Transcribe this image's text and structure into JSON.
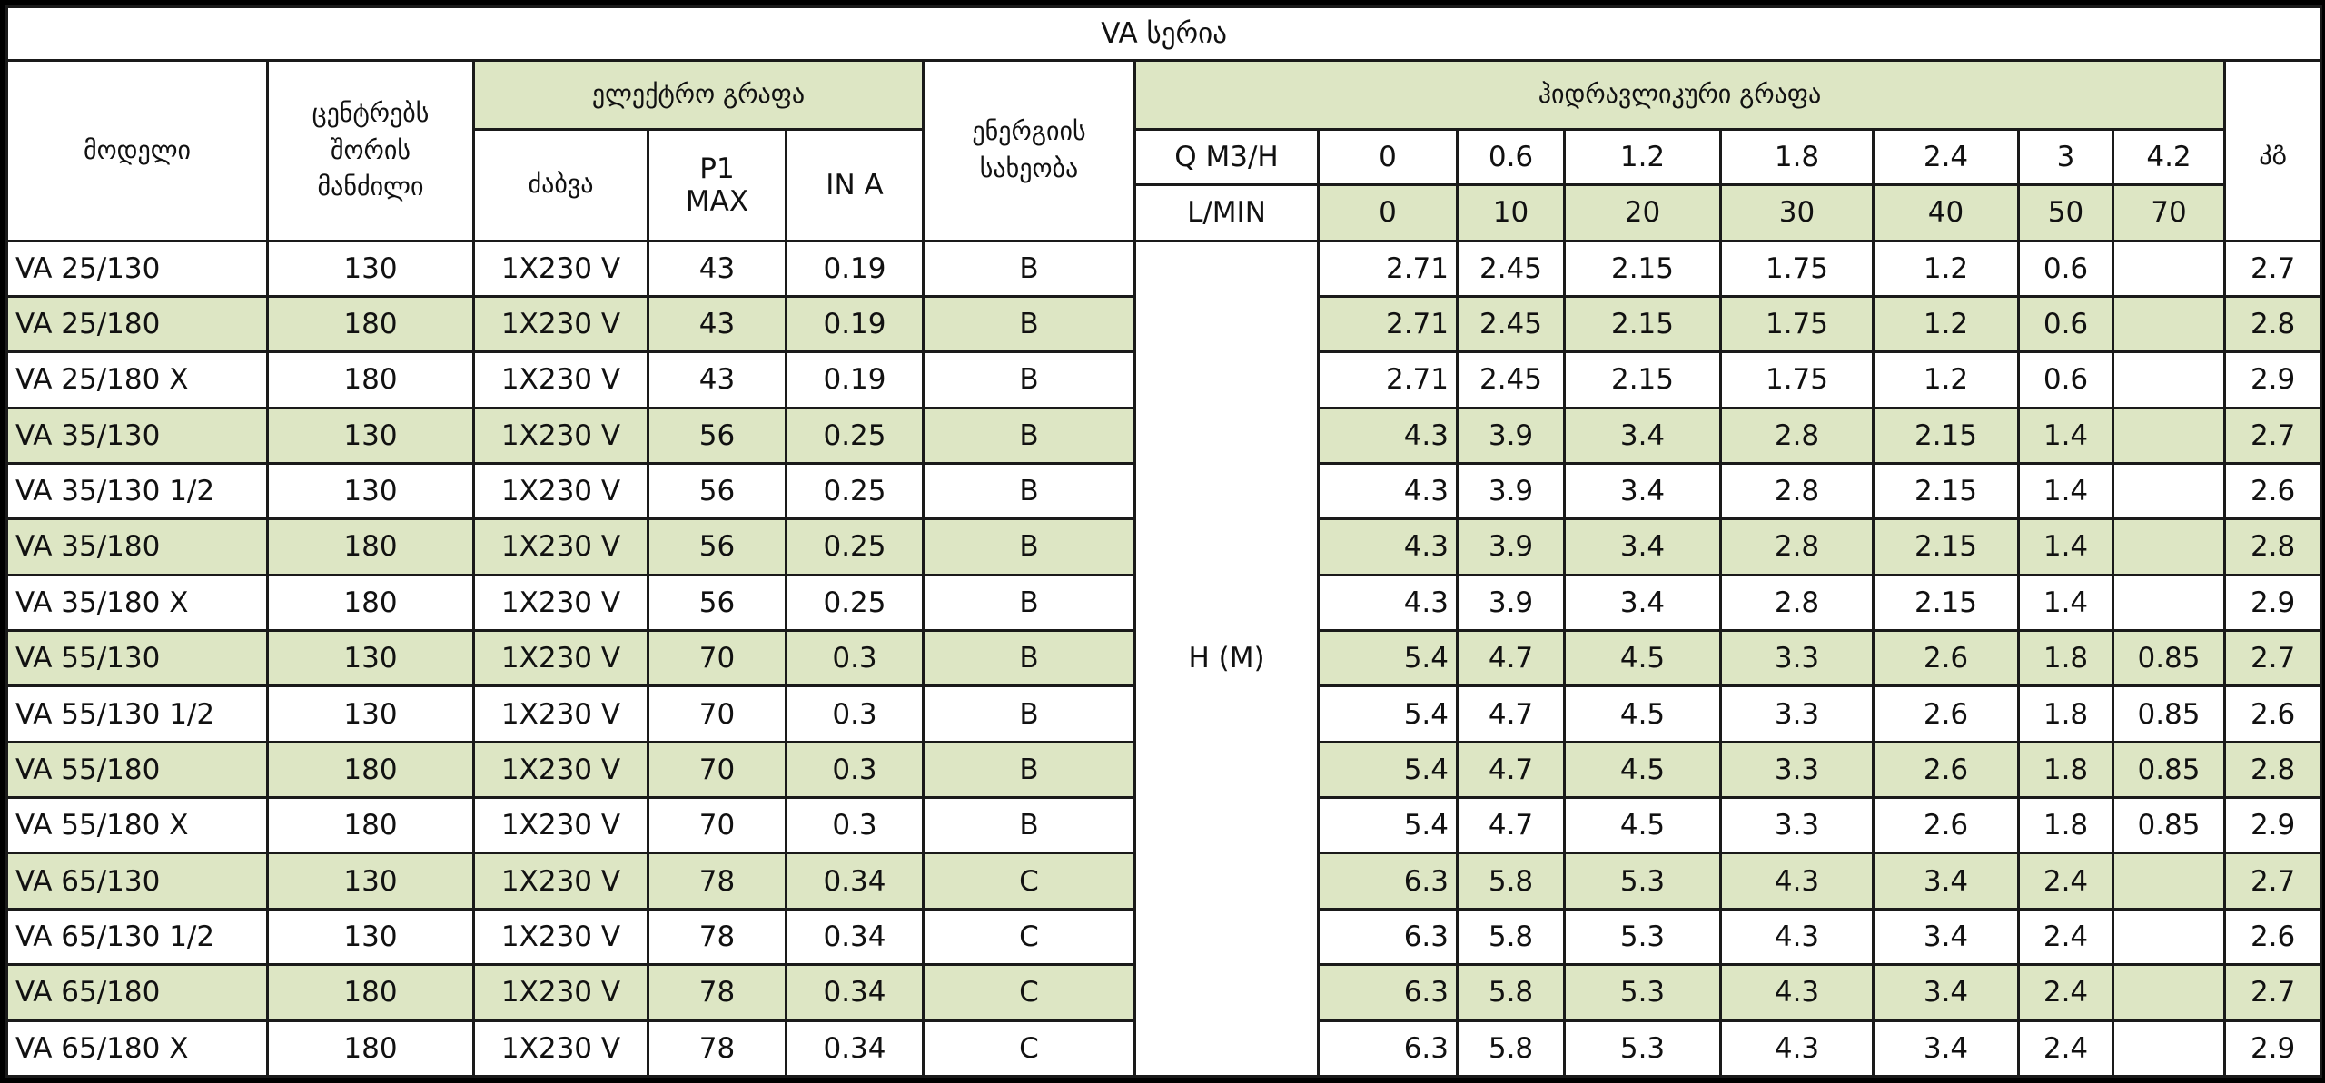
{
  "title": "VA სერია",
  "headers": {
    "model": "მოდელი",
    "distance": [
      "ცენტრებს",
      "შორის",
      "მანძილი"
    ],
    "electric_group": "ელექტრო გრაფა",
    "voltage": "ძაბვა",
    "p1": [
      "P1",
      "MAX"
    ],
    "in_a": "IN A",
    "energy": [
      "ენერგიის",
      "სახეობა"
    ],
    "hydraulic_group": "ჰიდრავლიკური გრაფა",
    "q_label": "Q M3/H",
    "q_values": [
      "0",
      "0.6",
      "1.2",
      "1.8",
      "2.4",
      "3",
      "4.2"
    ],
    "lmin_label": "L/MIN",
    "lmin_values": [
      "0",
      "10",
      "20",
      "30",
      "40",
      "50",
      "70"
    ],
    "kg": "კგ",
    "h_label": "H (M)"
  },
  "colors": {
    "row_highlight": "#dde6c4",
    "border": "#1a1a1a"
  },
  "rows": [
    {
      "model": "VA 25/130",
      "distance": "130",
      "voltage": "1X230 V",
      "p1": "43",
      "in_a": "0.19",
      "energy": "B",
      "h": [
        "2.71",
        "2.45",
        "2.15",
        "1.75",
        "1.2",
        "0.6",
        ""
      ],
      "kg": "2.7"
    },
    {
      "model": "VA 25/180",
      "distance": "180",
      "voltage": "1X230 V",
      "p1": "43",
      "in_a": "0.19",
      "energy": "B",
      "h": [
        "2.71",
        "2.45",
        "2.15",
        "1.75",
        "1.2",
        "0.6",
        ""
      ],
      "kg": "2.8"
    },
    {
      "model": "VA 25/180 X",
      "distance": "180",
      "voltage": "1X230 V",
      "p1": "43",
      "in_a": "0.19",
      "energy": "B",
      "h": [
        "2.71",
        "2.45",
        "2.15",
        "1.75",
        "1.2",
        "0.6",
        ""
      ],
      "kg": "2.9"
    },
    {
      "model": "VA 35/130",
      "distance": "130",
      "voltage": "1X230 V",
      "p1": "56",
      "in_a": "0.25",
      "energy": "B",
      "h": [
        "4.3",
        "3.9",
        "3.4",
        "2.8",
        "2.15",
        "1.4",
        ""
      ],
      "kg": "2.7"
    },
    {
      "model": "VA 35/130 1/2",
      "distance": "130",
      "voltage": "1X230 V",
      "p1": "56",
      "in_a": "0.25",
      "energy": "B",
      "h": [
        "4.3",
        "3.9",
        "3.4",
        "2.8",
        "2.15",
        "1.4",
        ""
      ],
      "kg": "2.6"
    },
    {
      "model": "VA 35/180",
      "distance": "180",
      "voltage": "1X230 V",
      "p1": "56",
      "in_a": "0.25",
      "energy": "B",
      "h": [
        "4.3",
        "3.9",
        "3.4",
        "2.8",
        "2.15",
        "1.4",
        ""
      ],
      "kg": "2.8"
    },
    {
      "model": "VA 35/180 X",
      "distance": "180",
      "voltage": "1X230 V",
      "p1": "56",
      "in_a": "0.25",
      "energy": "B",
      "h": [
        "4.3",
        "3.9",
        "3.4",
        "2.8",
        "2.15",
        "1.4",
        ""
      ],
      "kg": "2.9"
    },
    {
      "model": "VA 55/130",
      "distance": "130",
      "voltage": "1X230 V",
      "p1": "70",
      "in_a": "0.3",
      "energy": "B",
      "h": [
        "5.4",
        "4.7",
        "4.5",
        "3.3",
        "2.6",
        "1.8",
        "0.85"
      ],
      "kg": "2.7"
    },
    {
      "model": "VA 55/130 1/2",
      "distance": "130",
      "voltage": "1X230 V",
      "p1": "70",
      "in_a": "0.3",
      "energy": "B",
      "h": [
        "5.4",
        "4.7",
        "4.5",
        "3.3",
        "2.6",
        "1.8",
        "0.85"
      ],
      "kg": "2.6"
    },
    {
      "model": "VA 55/180",
      "distance": "180",
      "voltage": "1X230 V",
      "p1": "70",
      "in_a": "0.3",
      "energy": "B",
      "h": [
        "5.4",
        "4.7",
        "4.5",
        "3.3",
        "2.6",
        "1.8",
        "0.85"
      ],
      "kg": "2.8"
    },
    {
      "model": "VA 55/180 X",
      "distance": "180",
      "voltage": "1X230 V",
      "p1": "70",
      "in_a": "0.3",
      "energy": "B",
      "h": [
        "5.4",
        "4.7",
        "4.5",
        "3.3",
        "2.6",
        "1.8",
        "0.85"
      ],
      "kg": "2.9"
    },
    {
      "model": "VA 65/130",
      "distance": "130",
      "voltage": "1X230 V",
      "p1": "78",
      "in_a": "0.34",
      "energy": "C",
      "h": [
        "6.3",
        "5.8",
        "5.3",
        "4.3",
        "3.4",
        "2.4",
        ""
      ],
      "kg": "2.7"
    },
    {
      "model": "VA 65/130 1/2",
      "distance": "130",
      "voltage": "1X230 V",
      "p1": "78",
      "in_a": "0.34",
      "energy": "C",
      "h": [
        "6.3",
        "5.8",
        "5.3",
        "4.3",
        "3.4",
        "2.4",
        ""
      ],
      "kg": "2.6"
    },
    {
      "model": "VA 65/180",
      "distance": "180",
      "voltage": "1X230 V",
      "p1": "78",
      "in_a": "0.34",
      "energy": "C",
      "h": [
        "6.3",
        "5.8",
        "5.3",
        "4.3",
        "3.4",
        "2.4",
        ""
      ],
      "kg": "2.7"
    },
    {
      "model": "VA 65/180 X",
      "distance": "180",
      "voltage": "1X230 V",
      "p1": "78",
      "in_a": "0.34",
      "energy": "C",
      "h": [
        "6.3",
        "5.8",
        "5.3",
        "4.3",
        "3.4",
        "2.4",
        ""
      ],
      "kg": "2.9"
    }
  ]
}
